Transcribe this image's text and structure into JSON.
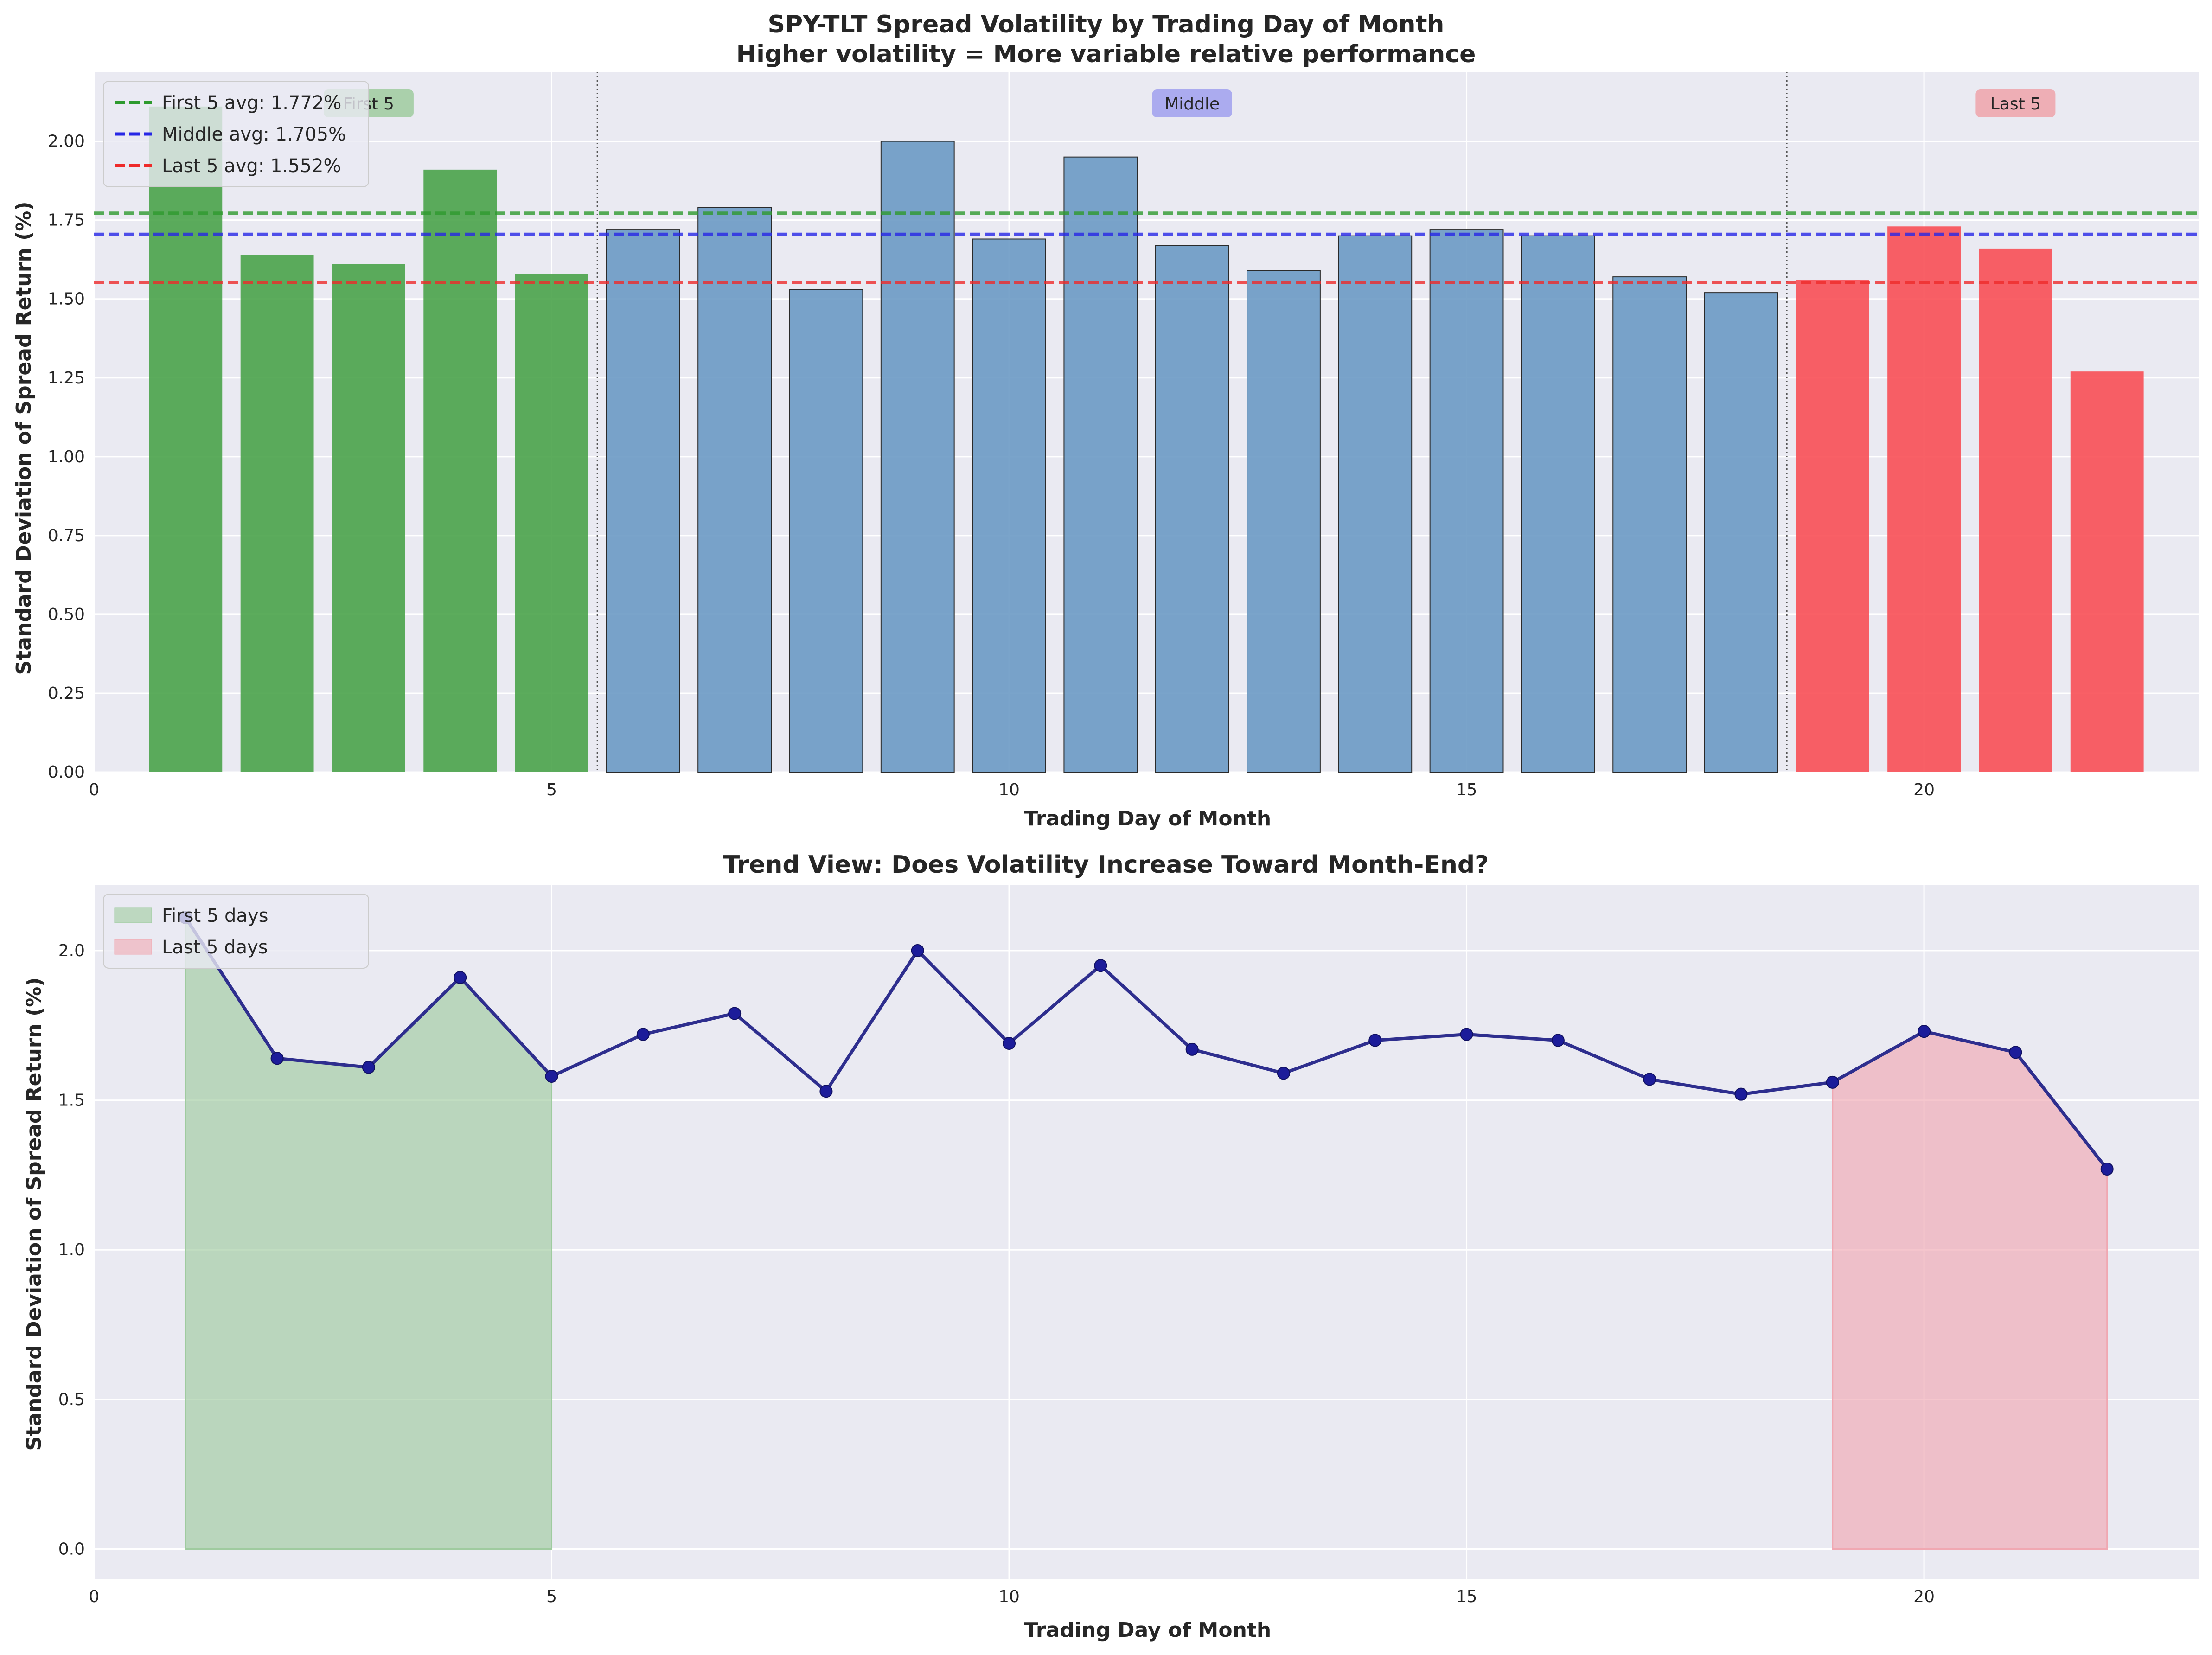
{
  "figure": {
    "background": "#ffffff",
    "plot_background": "#eaeaf2",
    "grid_color": "#ffffff"
  },
  "chart_data": [
    {
      "type": "bar",
      "title": "SPY-TLT Spread Volatility by Trading Day of Month",
      "subtitle": "Higher volatility = More variable relative performance",
      "xlabel": "Trading Day of Month",
      "ylabel": "Standard Deviation of Spread Return (%)",
      "xlim": [
        0,
        23
      ],
      "ylim": [
        0,
        2.22
      ],
      "xticks": [
        0,
        5,
        10,
        15,
        20
      ],
      "xtick_labels": [
        "0",
        "5",
        "10",
        "15",
        "20"
      ],
      "yticks": [
        0,
        0.25,
        0.5,
        0.75,
        1.0,
        1.25,
        1.5,
        1.75,
        2.0
      ],
      "ytick_labels": [
        "0.00",
        "0.25",
        "0.50",
        "0.75",
        "1.00",
        "1.25",
        "1.50",
        "1.75",
        "2.00"
      ],
      "grid": true,
      "x": [
        1,
        2,
        3,
        4,
        5,
        6,
        7,
        8,
        9,
        10,
        11,
        12,
        13,
        14,
        15,
        16,
        17,
        18,
        19,
        20,
        21,
        22
      ],
      "values": [
        2.11,
        1.64,
        1.61,
        1.91,
        1.58,
        1.72,
        1.79,
        1.53,
        2.0,
        1.69,
        1.95,
        1.67,
        1.59,
        1.7,
        1.72,
        1.7,
        1.57,
        1.52,
        1.56,
        1.73,
        1.66,
        1.27
      ],
      "groups": {
        "first": {
          "days": [
            1,
            2,
            3,
            4,
            5
          ],
          "color": "#4aa34a"
        },
        "middle": {
          "days": [
            6,
            7,
            8,
            9,
            10,
            11,
            12,
            13,
            14,
            15,
            16,
            17,
            18
          ],
          "color": "#6b9ac4"
        },
        "last": {
          "days": [
            19,
            20,
            21,
            22
          ],
          "color": "#f84f55"
        }
      },
      "reference_lines": [
        {
          "label": "First 5 avg: 1.772%",
          "value": 1.772,
          "color": "#2e9a2e"
        },
        {
          "label": "Middle avg: 1.705%",
          "value": 1.705,
          "color": "#2727e6"
        },
        {
          "label": "Last 5 avg: 1.552%",
          "value": 1.552,
          "color": "#ee2a2a"
        }
      ],
      "dividers_x": [
        5.5,
        18.5
      ],
      "region_labels": [
        {
          "text": "First 5",
          "x": 3.0,
          "color": "#9fcb9f"
        },
        {
          "text": "Middle",
          "x": 12.0,
          "color": "#a0a0ee"
        },
        {
          "text": "Last 5",
          "x": 21.0,
          "color": "#eea3aa"
        }
      ],
      "legend_position": "top-left"
    },
    {
      "type": "line",
      "title": "Trend View: Does Volatility Increase Toward Month-End?",
      "xlabel": "Trading Day of Month",
      "ylabel": "Standard Deviation of Spread Return (%)",
      "xlim": [
        0,
        23
      ],
      "ylim": [
        -0.1,
        2.22
      ],
      "xticks": [
        0,
        5,
        10,
        15,
        20
      ],
      "xtick_labels": [
        "0",
        "5",
        "10",
        "15",
        "20"
      ],
      "yticks": [
        0.0,
        0.5,
        1.0,
        1.5,
        2.0
      ],
      "ytick_labels": [
        "0.0",
        "0.5",
        "1.0",
        "1.5",
        "2.0"
      ],
      "grid": true,
      "x": [
        1,
        2,
        3,
        4,
        5,
        6,
        7,
        8,
        9,
        10,
        11,
        12,
        13,
        14,
        15,
        16,
        17,
        18,
        19,
        20,
        21,
        22
      ],
      "values": [
        2.11,
        1.64,
        1.61,
        1.91,
        1.58,
        1.72,
        1.79,
        1.53,
        2.0,
        1.69,
        1.95,
        1.67,
        1.59,
        1.7,
        1.72,
        1.7,
        1.57,
        1.52,
        1.56,
        1.73,
        1.66,
        1.27
      ],
      "line_color": "#2e2e8e",
      "marker_color": "#1c1c9a",
      "shaded_regions": [
        {
          "label": "First 5 days",
          "from": 1,
          "to": 5,
          "color": "#9fcb9f"
        },
        {
          "label": "Last 5 days",
          "from": 19,
          "to": 22,
          "color": "#f0a8b2"
        }
      ],
      "legend_position": "top-left"
    }
  ]
}
